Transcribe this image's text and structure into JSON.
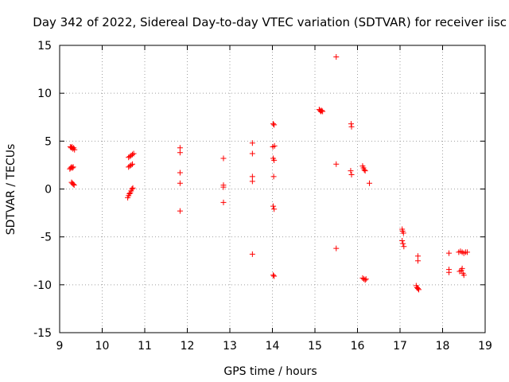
{
  "chart_data": {
    "type": "scatter",
    "title": "Day 342 of 2022, Sidereal Day-to-day VTEC variation (SDTVAR) for receiver iisc",
    "xlabel": "GPS time / hours",
    "ylabel": "SDTVAR / TECUs",
    "xlim": [
      9,
      19
    ],
    "ylim": [
      -15,
      15
    ],
    "grid": true,
    "marker": "+",
    "x_ticks": [
      "9",
      "10",
      "11",
      "12",
      "13",
      "14",
      "15",
      "16",
      "17",
      "18",
      "19"
    ],
    "y_ticks": [
      "-15",
      "-10",
      "-5",
      "0",
      "5",
      "10",
      "15"
    ],
    "series": [
      {
        "name": "SDTVAR",
        "color": "#ff0000",
        "points": [
          [
            9.25,
            4.4
          ],
          [
            9.27,
            4.3
          ],
          [
            9.29,
            4.4
          ],
          [
            9.31,
            4.2
          ],
          [
            9.33,
            4.3
          ],
          [
            9.35,
            4.1
          ],
          [
            9.24,
            2.1
          ],
          [
            9.26,
            2.2
          ],
          [
            9.28,
            2.3
          ],
          [
            9.3,
            2.2
          ],
          [
            9.32,
            2.3
          ],
          [
            9.28,
            0.7
          ],
          [
            9.3,
            0.6
          ],
          [
            9.32,
            0.5
          ],
          [
            9.34,
            0.4
          ],
          [
            10.62,
            3.3
          ],
          [
            10.65,
            3.4
          ],
          [
            10.68,
            3.5
          ],
          [
            10.71,
            3.6
          ],
          [
            10.74,
            3.7
          ],
          [
            10.62,
            2.3
          ],
          [
            10.65,
            2.4
          ],
          [
            10.68,
            2.5
          ],
          [
            10.71,
            2.6
          ],
          [
            10.6,
            -0.9
          ],
          [
            10.62,
            -0.7
          ],
          [
            10.64,
            -0.5
          ],
          [
            10.66,
            -0.4
          ],
          [
            10.68,
            -0.2
          ],
          [
            10.7,
            0.0
          ],
          [
            10.72,
            0.1
          ],
          [
            11.83,
            4.3
          ],
          [
            11.83,
            3.8
          ],
          [
            11.83,
            1.7
          ],
          [
            11.83,
            0.6
          ],
          [
            11.83,
            -2.3
          ],
          [
            12.85,
            3.2
          ],
          [
            12.85,
            0.4
          ],
          [
            12.85,
            0.2
          ],
          [
            12.85,
            -1.4
          ],
          [
            13.53,
            4.8
          ],
          [
            13.53,
            3.7
          ],
          [
            13.53,
            1.3
          ],
          [
            13.53,
            0.8
          ],
          [
            13.53,
            -6.8
          ],
          [
            14.02,
            6.8
          ],
          [
            14.04,
            6.7
          ],
          [
            14.01,
            4.4
          ],
          [
            14.05,
            4.5
          ],
          [
            14.02,
            3.2
          ],
          [
            14.04,
            3.0
          ],
          [
            14.03,
            1.3
          ],
          [
            14.02,
            -1.8
          ],
          [
            14.04,
            -2.1
          ],
          [
            14.02,
            -9.0
          ],
          [
            14.04,
            -9.1
          ],
          [
            15.1,
            8.3
          ],
          [
            15.12,
            8.2
          ],
          [
            15.14,
            8.1
          ],
          [
            15.16,
            8.2
          ],
          [
            15.18,
            8.1
          ],
          [
            15.5,
            13.8
          ],
          [
            15.5,
            2.6
          ],
          [
            15.5,
            -6.2
          ],
          [
            15.85,
            6.8
          ],
          [
            15.86,
            6.5
          ],
          [
            15.84,
            1.9
          ],
          [
            15.86,
            1.5
          ],
          [
            16.12,
            2.4
          ],
          [
            16.14,
            2.2
          ],
          [
            16.16,
            2.0
          ],
          [
            16.18,
            1.9
          ],
          [
            16.28,
            0.6
          ],
          [
            16.12,
            -9.3
          ],
          [
            16.15,
            -9.4
          ],
          [
            16.18,
            -9.5
          ],
          [
            16.2,
            -9.4
          ],
          [
            17.05,
            -4.2
          ],
          [
            17.06,
            -4.4
          ],
          [
            17.08,
            -4.6
          ],
          [
            17.05,
            -5.4
          ],
          [
            17.07,
            -5.7
          ],
          [
            17.09,
            -6.0
          ],
          [
            17.38,
            -10.1
          ],
          [
            17.4,
            -10.3
          ],
          [
            17.42,
            -10.4
          ],
          [
            17.44,
            -10.5
          ],
          [
            17.42,
            -7.0
          ],
          [
            17.42,
            -7.5
          ],
          [
            18.15,
            -6.7
          ],
          [
            18.15,
            -8.4
          ],
          [
            18.15,
            -8.7
          ],
          [
            18.38,
            -6.6
          ],
          [
            18.42,
            -6.5
          ],
          [
            18.46,
            -6.6
          ],
          [
            18.5,
            -6.7
          ],
          [
            18.54,
            -6.6
          ],
          [
            18.58,
            -6.6
          ],
          [
            18.4,
            -8.6
          ],
          [
            18.44,
            -8.5
          ],
          [
            18.48,
            -8.8
          ],
          [
            18.5,
            -9.0
          ],
          [
            18.46,
            -8.3
          ]
        ]
      }
    ]
  }
}
